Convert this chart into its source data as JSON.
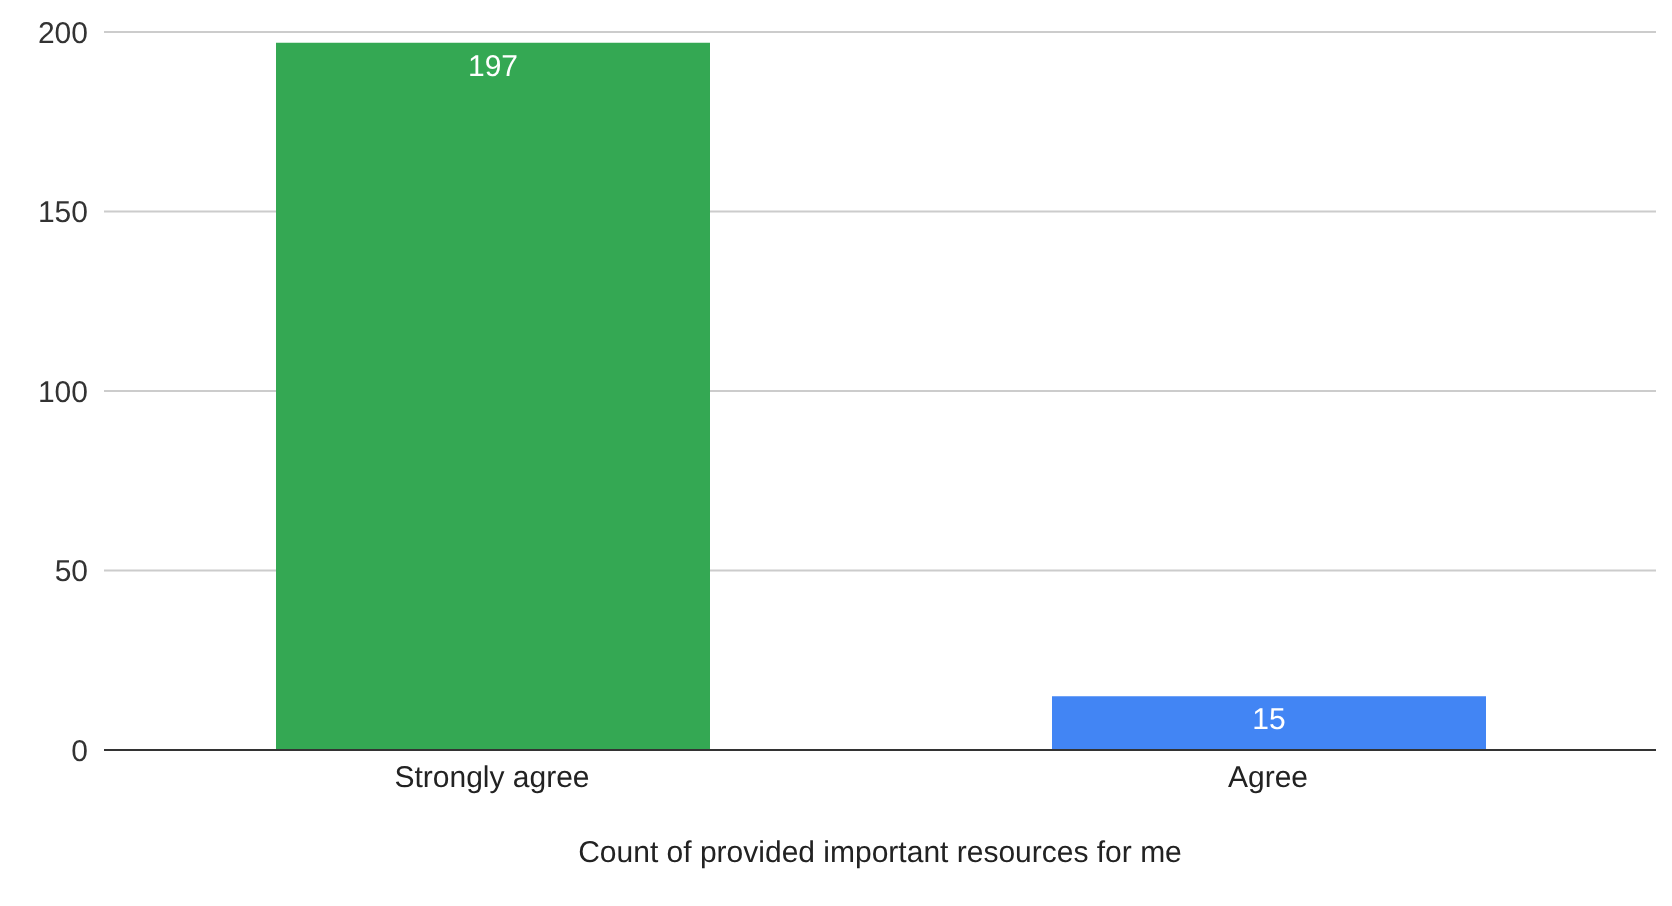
{
  "chart_data": {
    "type": "bar",
    "xlabel": "Count of provided important resources for me",
    "categories": [
      "Strongly agree",
      "Agree"
    ],
    "values": [
      197,
      15
    ],
    "colors": [
      "#34a853",
      "#4285f4"
    ],
    "ylim": [
      0,
      200
    ],
    "yticks": [
      0,
      50,
      100,
      150,
      200
    ],
    "grid": "y",
    "data_labels": true
  }
}
